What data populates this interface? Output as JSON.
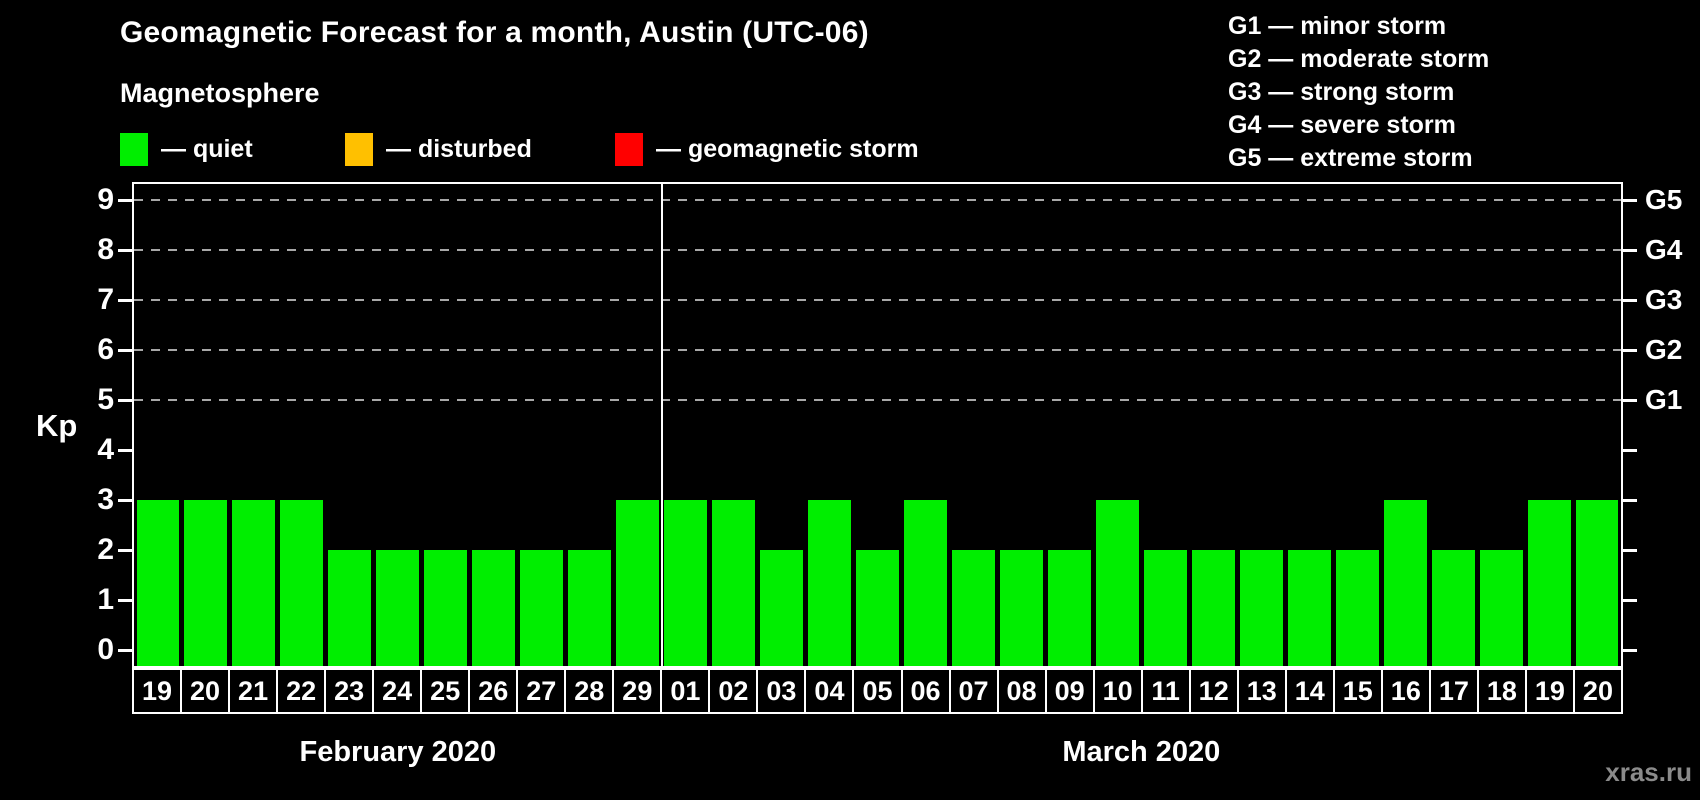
{
  "header": {
    "title": "Geomagnetic Forecast for a month, Austin (UTC-06)",
    "subtitle": "Magnetosphere"
  },
  "legend": {
    "items": [
      {
        "name": "quiet",
        "label": "— quiet",
        "color": "#00ee00"
      },
      {
        "name": "disturbed",
        "label": "— disturbed",
        "color": "#ffc000"
      },
      {
        "name": "geomagnetic-storm",
        "label": "— geomagnetic storm",
        "color": "#ff0000"
      }
    ]
  },
  "g_legend": {
    "items": [
      {
        "code": "G1",
        "label": "G1 — minor storm"
      },
      {
        "code": "G2",
        "label": "G2 — moderate storm"
      },
      {
        "code": "G3",
        "label": "G3 — strong storm"
      },
      {
        "code": "G4",
        "label": "G4 — severe storm"
      },
      {
        "code": "G5",
        "label": "G5 — extreme storm"
      }
    ]
  },
  "chart_data": {
    "type": "bar",
    "title": "Geomagnetic Forecast for a month, Austin (UTC-06)",
    "xlabel": "",
    "ylabel": "Kp",
    "ylim": [
      0,
      9
    ],
    "y_ticks": [
      0,
      1,
      2,
      3,
      4,
      5,
      6,
      7,
      8,
      9
    ],
    "grid": "horizontal dashed lines at Kp 5,6,7,8,9",
    "legend_position": "top",
    "bar_color": "#00ee00",
    "right_axis_labels": [
      {
        "label": "G1",
        "value": 5
      },
      {
        "label": "G2",
        "value": 6
      },
      {
        "label": "G3",
        "value": 7
      },
      {
        "label": "G4",
        "value": 8
      },
      {
        "label": "G5",
        "value": 9
      }
    ],
    "months": [
      {
        "label": "February 2020",
        "days": [
          "19",
          "20",
          "21",
          "22",
          "23",
          "24",
          "25",
          "26",
          "27",
          "28",
          "29"
        ],
        "values": [
          3,
          3,
          3,
          3,
          2,
          2,
          2,
          2,
          2,
          2,
          3
        ]
      },
      {
        "label": "March 2020",
        "days": [
          "01",
          "02",
          "03",
          "04",
          "05",
          "06",
          "07",
          "08",
          "09",
          "10",
          "11",
          "12",
          "13",
          "14",
          "15",
          "16",
          "17",
          "18",
          "19",
          "20"
        ],
        "values": [
          3,
          3,
          2,
          3,
          2,
          3,
          2,
          2,
          2,
          3,
          2,
          2,
          2,
          2,
          2,
          3,
          2,
          2,
          3,
          3
        ]
      }
    ]
  },
  "footer": {
    "watermark": "xras.ru"
  }
}
